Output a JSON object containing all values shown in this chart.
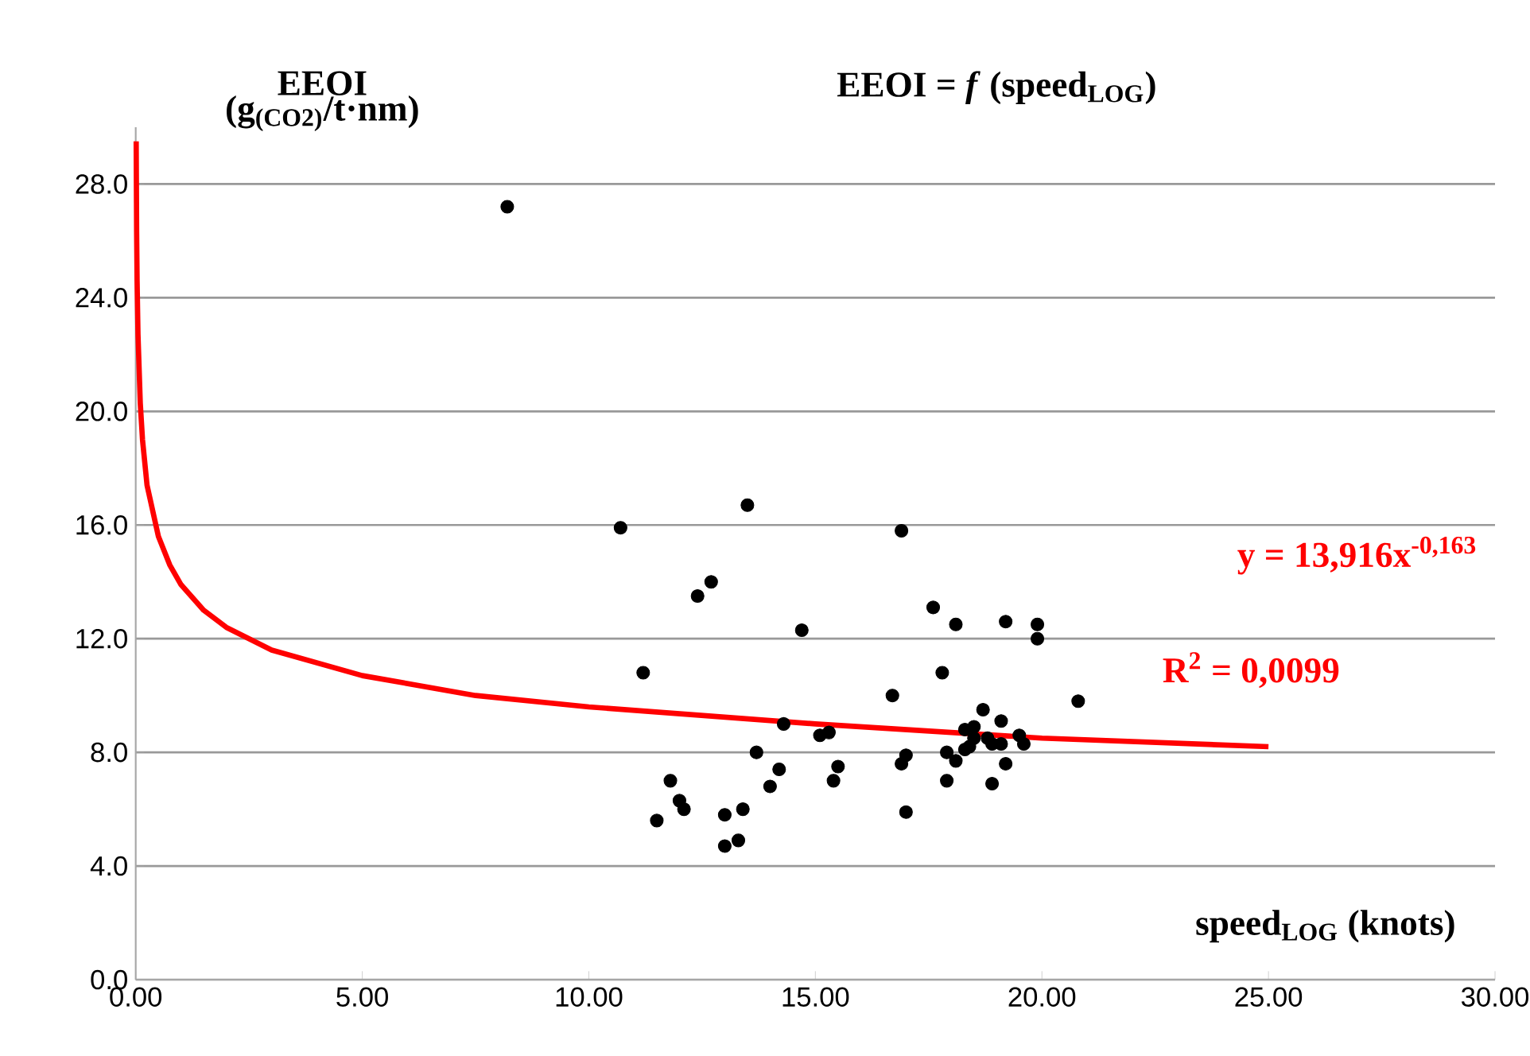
{
  "chart_data": {
    "type": "scatter",
    "title": "EEOI = *f* (speed$_{LOG}$)",
    "xlabel": "speed$_{LOG}$ (knots)",
    "ylabel": "EEOI (g$_{(CO2)}$/t·nm)",
    "annotations": [
      "y = 13,916x$^{-0,163}$",
      "R$^{2}$ = 0,0099"
    ],
    "xlim": [
      0,
      30
    ],
    "ylim": [
      0,
      30
    ],
    "xticks": [
      {
        "value": 0,
        "label": "0.00"
      },
      {
        "value": 5,
        "label": "5.00"
      },
      {
        "value": 10,
        "label": "10.00"
      },
      {
        "value": 15,
        "label": "15.00"
      },
      {
        "value": 20,
        "label": "20.00"
      },
      {
        "value": 25,
        "label": "25.00"
      },
      {
        "value": 30,
        "label": "30.00"
      }
    ],
    "yticks": [
      {
        "value": 0,
        "label": "0.0"
      },
      {
        "value": 4,
        "label": "4.0"
      },
      {
        "value": 8,
        "label": "8.0"
      },
      {
        "value": 12,
        "label": "12.0"
      },
      {
        "value": 16,
        "label": "16.0"
      },
      {
        "value": 20,
        "label": "20.0"
      },
      {
        "value": 24,
        "label": "24.0"
      },
      {
        "value": 28,
        "label": "28.0"
      }
    ],
    "grid": "y",
    "marker": "circle",
    "series": [
      {
        "color": "#000000",
        "x": [
          8.2,
          10.7,
          13.5,
          16.9,
          12.4,
          12.7,
          14.7,
          11.2,
          17.6,
          18.1,
          19.2,
          19.9,
          19.9,
          17.8,
          16.7,
          20.8,
          14.3,
          15.1,
          15.3,
          13.7,
          14.2,
          14.0,
          15.5,
          15.4,
          11.8,
          12.0,
          12.1,
          11.5,
          13.0,
          13.4,
          13.0,
          13.3,
          17.0,
          16.9,
          17.0,
          17.9,
          18.1,
          17.9,
          18.9,
          19.2,
          18.7,
          19.1,
          18.3,
          18.5,
          19.5,
          19.6,
          18.8,
          19.1,
          18.3,
          18.4,
          18.9,
          18.5
        ],
        "values": [
          27.2,
          15.9,
          16.7,
          15.8,
          13.5,
          14.0,
          12.3,
          10.8,
          13.1,
          12.5,
          12.6,
          12.5,
          12.0,
          10.8,
          10.0,
          9.8,
          9.0,
          8.6,
          8.7,
          8.0,
          7.4,
          6.8,
          7.5,
          7.0,
          7.0,
          6.3,
          6.0,
          5.6,
          5.8,
          6.0,
          4.7,
          4.9,
          7.9,
          7.6,
          5.9,
          8.0,
          7.7,
          7.0,
          6.9,
          7.6,
          9.5,
          9.1,
          8.8,
          8.9,
          8.6,
          8.3,
          8.5,
          8.3,
          8.1,
          8.2,
          8.3,
          8.5
        ]
      },
      {
        "type": "line",
        "color": "#ff0000",
        "marker": "none",
        "x": [
          0.01,
          0.02,
          0.03,
          0.05,
          0.1,
          0.15,
          0.25,
          0.5,
          0.75,
          1,
          1.5,
          2,
          3,
          5,
          7.5,
          10,
          15,
          20,
          25
        ],
        "values": [
          29.5,
          26.3,
          24.6,
          22.7,
          20.3,
          19.0,
          17.4,
          15.6,
          14.6,
          13.9,
          13.0,
          12.4,
          11.6,
          10.7,
          10.0,
          9.6,
          9.0,
          8.5,
          8.2
        ]
      }
    ]
  }
}
